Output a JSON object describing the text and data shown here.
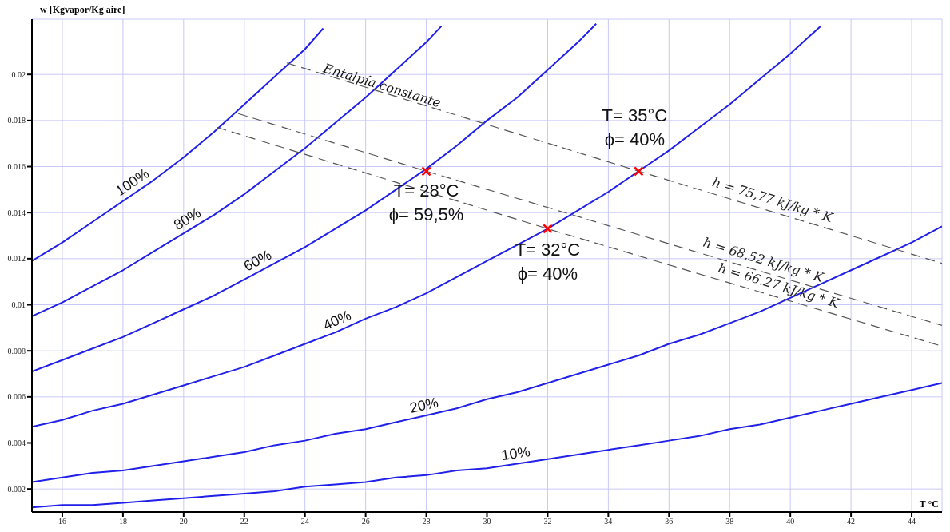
{
  "chart_data": {
    "type": "line",
    "xlabel": "T °C",
    "ylabel": "w [Kgvapor/Kg aire]",
    "xlim": [
      15,
      45
    ],
    "ylim": [
      0.001,
      0.0224
    ],
    "xticks": [
      16,
      18,
      20,
      22,
      24,
      26,
      28,
      30,
      32,
      34,
      36,
      38,
      40,
      42,
      44
    ],
    "yticks": [
      0.002,
      0.004,
      0.006,
      0.008,
      0.01,
      0.012,
      0.014,
      0.016,
      0.018,
      0.02
    ],
    "grid": true,
    "legend": false,
    "marker": "none",
    "line_style": "solid",
    "series": [
      {
        "name": "100%",
        "color": "#2020e8",
        "x": [
          15,
          16,
          17,
          18,
          19,
          20,
          21,
          22,
          23,
          24,
          24.6
        ],
        "values": [
          0.0119,
          0.0127,
          0.0136,
          0.0145,
          0.0154,
          0.0164,
          0.0175,
          0.0187,
          0.0199,
          0.0211,
          0.022
        ]
      },
      {
        "name": "80%",
        "color": "#2020e8",
        "x": [
          15,
          16,
          17,
          18,
          19,
          20,
          21,
          22,
          23,
          24,
          25,
          26,
          27,
          28,
          28.5
        ],
        "values": [
          0.0095,
          0.0101,
          0.0108,
          0.0115,
          0.0123,
          0.0131,
          0.0139,
          0.0148,
          0.0158,
          0.0168,
          0.0179,
          0.019,
          0.0202,
          0.0214,
          0.0221
        ]
      },
      {
        "name": "60%",
        "color": "#2020e8",
        "x": [
          15,
          16,
          17,
          18,
          19,
          20,
          21,
          22,
          23,
          24,
          25,
          26,
          27,
          28,
          29,
          30,
          31,
          32,
          33,
          33.6
        ],
        "values": [
          0.0071,
          0.0076,
          0.0081,
          0.0086,
          0.0092,
          0.0098,
          0.0104,
          0.0111,
          0.0118,
          0.0125,
          0.0133,
          0.0141,
          0.015,
          0.0159,
          0.0169,
          0.018,
          0.019,
          0.0202,
          0.0214,
          0.0222
        ]
      },
      {
        "name": "40%",
        "color": "#2020e8",
        "x": [
          15,
          16,
          17,
          18,
          19,
          20,
          21,
          22,
          23,
          24,
          25,
          26,
          27,
          28,
          29,
          30,
          31,
          32,
          33,
          34,
          35,
          36,
          37,
          38,
          39,
          40,
          41
        ],
        "values": [
          0.0047,
          0.005,
          0.0054,
          0.0057,
          0.0061,
          0.0065,
          0.0069,
          0.0073,
          0.0078,
          0.0083,
          0.0088,
          0.0094,
          0.0099,
          0.0105,
          0.0112,
          0.0119,
          0.0126,
          0.0133,
          0.0141,
          0.0149,
          0.0158,
          0.0167,
          0.0177,
          0.0187,
          0.0198,
          0.0209,
          0.0221
        ]
      },
      {
        "name": "20%",
        "color": "#2020e8",
        "x": [
          15,
          16,
          17,
          18,
          19,
          20,
          21,
          22,
          23,
          24,
          25,
          26,
          27,
          28,
          29,
          30,
          31,
          32,
          33,
          34,
          35,
          36,
          37,
          38,
          39,
          40,
          41,
          42,
          43,
          44,
          45
        ],
        "values": [
          0.0023,
          0.0025,
          0.0027,
          0.0028,
          0.003,
          0.0032,
          0.0034,
          0.0036,
          0.0039,
          0.0041,
          0.0044,
          0.0046,
          0.0049,
          0.0052,
          0.0055,
          0.0059,
          0.0062,
          0.0066,
          0.007,
          0.0074,
          0.0078,
          0.0083,
          0.0087,
          0.0092,
          0.0097,
          0.0103,
          0.0109,
          0.0115,
          0.0121,
          0.0127,
          0.0134
        ]
      },
      {
        "name": "10%",
        "color": "#2020e8",
        "x": [
          15,
          16,
          17,
          18,
          19,
          20,
          21,
          22,
          23,
          24,
          25,
          26,
          27,
          28,
          29,
          30,
          31,
          32,
          33,
          34,
          35,
          36,
          37,
          38,
          39,
          40,
          41,
          42,
          43,
          44,
          45
        ],
        "values": [
          0.0012,
          0.0013,
          0.0013,
          0.0014,
          0.0015,
          0.0016,
          0.0017,
          0.0018,
          0.0019,
          0.0021,
          0.0022,
          0.0023,
          0.0025,
          0.0026,
          0.0028,
          0.0029,
          0.0031,
          0.0033,
          0.0035,
          0.0037,
          0.0039,
          0.0041,
          0.0043,
          0.0046,
          0.0048,
          0.0051,
          0.0054,
          0.0057,
          0.006,
          0.0063,
          0.0066
        ]
      },
      {
        "name": "h = 75,77 kJ/kg * K",
        "color": "#555555",
        "line_style": "dashed",
        "x": [
          23.4,
          35,
          45
        ],
        "values": [
          0.0205,
          0.0158,
          0.0118
        ]
      },
      {
        "name": "h = 68,52 kJ/kg * K",
        "color": "#555555",
        "line_style": "dashed",
        "x": [
          21.8,
          28,
          45
        ],
        "values": [
          0.0183,
          0.0158,
          0.0091
        ]
      },
      {
        "name": "h = 66.27 kJ/kg * K",
        "color": "#555555",
        "line_style": "dashed",
        "x": [
          21.1,
          32,
          45
        ],
        "values": [
          0.0177,
          0.0133,
          0.0082
        ]
      },
      {
        "type": "scatter",
        "color": "#ff0000",
        "marker": "cross",
        "x": [
          28,
          35,
          32
        ],
        "values": [
          0.0158,
          0.0158,
          0.0133
        ]
      }
    ],
    "annotations": [
      {
        "text": "T= 28°C\nϕ= 59,5%",
        "x": 28,
        "y": 0.0158
      },
      {
        "text": "T= 35°C\nϕ= 40%",
        "x": 35,
        "y": 0.0158
      },
      {
        "text": "T= 32°C\nϕ= 40%",
        "x": 32,
        "y": 0.0133
      },
      {
        "text": "Entalpía constante",
        "x": 26.5,
        "y": 0.0192
      }
    ]
  }
}
